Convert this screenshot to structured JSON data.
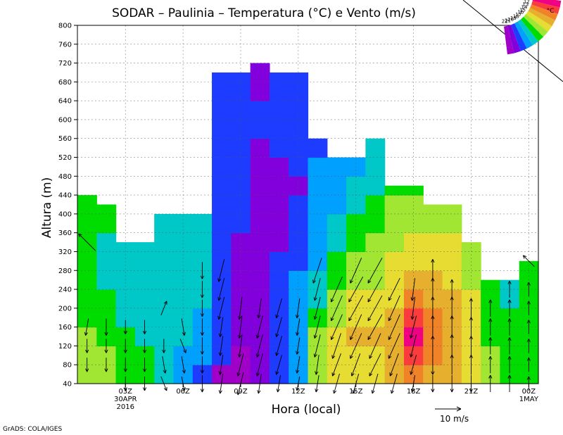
{
  "chart_data": {
    "type": "heatmap",
    "title": "SODAR – Paulinia – Temperatura (°C) e Vento (m/s)",
    "xlabel": "Hora (local)",
    "ylabel": "Altura (m)",
    "footer": "GrADS: COLA/IGES",
    "vector_key": {
      "label": "10 m/s",
      "speed": 10
    },
    "x_range_hours": [
      1,
      24
    ],
    "ylim": [
      40,
      800
    ],
    "y_ticks": [
      40,
      80,
      120,
      160,
      200,
      240,
      280,
      320,
      360,
      400,
      440,
      480,
      520,
      560,
      600,
      640,
      680,
      720,
      760,
      800
    ],
    "x_ticks": [
      {
        "hour": 3,
        "label": "03Z",
        "sub1": "30APR",
        "sub2": "2016"
      },
      {
        "hour": 6,
        "label": "06Z"
      },
      {
        "hour": 9,
        "label": "09Z"
      },
      {
        "hour": 12,
        "label": "12Z"
      },
      {
        "hour": 15,
        "label": "15Z"
      },
      {
        "hour": 18,
        "label": "18Z"
      },
      {
        "hour": 21,
        "label": "21Z"
      },
      {
        "hour": 24,
        "label": "00Z",
        "sub1": "1MAY"
      }
    ],
    "grid": true,
    "legend": {
      "unit": "°C",
      "placement": "top-right",
      "levels": [
        11,
        12,
        13,
        14,
        15,
        16,
        17,
        18,
        19,
        20,
        21,
        22
      ],
      "colors": [
        "#a000c8",
        "#8200dc",
        "#1e3cff",
        "#00a0ff",
        "#00c8c8",
        "#00dc00",
        "#a0e632",
        "#e6dc32",
        "#e6af2d",
        "#f08228",
        "#fa3c3c",
        "#f00082"
      ]
    },
    "columns": [
      {
        "hour": 1,
        "top": 440,
        "temps": [
          17,
          17,
          17,
          16,
          16,
          16,
          16,
          16,
          16,
          16,
          16
        ]
      },
      {
        "hour": 2,
        "top": 420,
        "temps": [
          17,
          17,
          16,
          16,
          16,
          15,
          15,
          15,
          16,
          16,
          16
        ]
      },
      {
        "hour": 3,
        "top": 340,
        "temps": [
          16,
          16,
          16,
          15,
          15,
          15,
          15,
          15
        ]
      },
      {
        "hour": 4,
        "top": 340,
        "temps": [
          16,
          16,
          15,
          15,
          15,
          15,
          15,
          15
        ]
      },
      {
        "hour": 5,
        "top": 400,
        "temps": [
          15,
          15,
          15,
          15,
          15,
          15,
          15,
          15,
          15,
          16
        ]
      },
      {
        "hour": 6,
        "top": 400,
        "temps": [
          14,
          14,
          15,
          15,
          15,
          15,
          15,
          15,
          15,
          16
        ]
      },
      {
        "hour": 7,
        "top": 400,
        "temps": [
          13,
          14,
          14,
          14,
          15,
          15,
          15,
          15,
          15,
          15
        ]
      },
      {
        "hour": 8,
        "top": 700,
        "temps": [
          11,
          13,
          13,
          13,
          13,
          13,
          13,
          13,
          13,
          13,
          13,
          13,
          13,
          13,
          13,
          13,
          13,
          13
        ]
      },
      {
        "hour": 9,
        "top": 700,
        "temps": [
          11,
          11,
          12,
          12,
          12,
          12,
          12,
          12,
          13,
          13,
          13,
          13,
          13,
          13,
          13,
          13,
          13,
          12
        ]
      },
      {
        "hour": 10,
        "top": 720,
        "temps": [
          12,
          12,
          12,
          12,
          12,
          12,
          12,
          12,
          12,
          12,
          12,
          12,
          12,
          13,
          13,
          12,
          12,
          12,
          12
        ]
      },
      {
        "hour": 11,
        "top": 700,
        "temps": [
          13,
          13,
          13,
          13,
          13,
          13,
          13,
          12,
          12,
          12,
          12,
          12,
          13,
          13,
          13,
          13,
          13,
          12
        ]
      },
      {
        "hour": 12,
        "top": 700,
        "temps": [
          14,
          14,
          14,
          14,
          14,
          14,
          13,
          13,
          13,
          13,
          12,
          13,
          13,
          13,
          13,
          13,
          13,
          12
        ]
      },
      {
        "hour": 13,
        "top": 560,
        "temps": [
          17,
          17,
          17,
          16,
          15,
          15,
          14,
          14,
          14,
          14,
          14,
          14,
          13,
          13
        ]
      },
      {
        "hour": 14,
        "top": 520,
        "temps": [
          18,
          18,
          18,
          17,
          17,
          16,
          16,
          15,
          15,
          14,
          14,
          14,
          14
        ]
      },
      {
        "hour": 15,
        "top": 520,
        "temps": [
          18,
          18,
          19,
          18,
          18,
          17,
          17,
          16,
          16,
          15,
          15,
          14,
          14
        ]
      },
      {
        "hour": 16,
        "top": 560,
        "temps": [
          18,
          18,
          19,
          18,
          18,
          17,
          17,
          17,
          16,
          16,
          15,
          15,
          15,
          14
        ]
      },
      {
        "hour": 17,
        "top": 460,
        "temps": [
          19,
          19,
          19,
          19,
          18,
          18,
          18,
          17,
          17,
          17,
          16,
          16
        ]
      },
      {
        "hour": 18,
        "top": 460,
        "temps": [
          20,
          21,
          22,
          21,
          20,
          19,
          18,
          18,
          17,
          17,
          16,
          16
        ]
      },
      {
        "hour": 19,
        "top": 420,
        "temps": [
          19,
          20,
          20,
          20,
          19,
          19,
          18,
          18,
          17,
          17,
          16
        ]
      },
      {
        "hour": 20,
        "top": 420,
        "temps": [
          19,
          19,
          19,
          19,
          19,
          18,
          18,
          18,
          17,
          17,
          16
        ]
      },
      {
        "hour": 21,
        "top": 340,
        "temps": [
          18,
          18,
          18,
          18,
          18,
          17,
          17,
          17
        ]
      },
      {
        "hour": 22,
        "top": 260,
        "temps": [
          17,
          17,
          16,
          16,
          16,
          16
        ]
      },
      {
        "hour": 23,
        "top": 260,
        "temps": [
          16,
          16,
          16,
          16,
          15,
          15
        ]
      },
      {
        "hour": 24,
        "top": 300,
        "temps": [
          16,
          16,
          16,
          16,
          16,
          16,
          16
        ]
      }
    ],
    "wind_vectors": [
      {
        "hour": 1,
        "profile": [
          [
            80,
            0,
            -5
          ],
          [
            120,
            0,
            -5
          ],
          [
            160,
            -1,
            -6
          ],
          [
            340,
            -6,
            6
          ]
        ]
      },
      {
        "hour": 2,
        "profile": [
          [
            80,
            0,
            -5
          ],
          [
            120,
            0,
            -5
          ],
          [
            160,
            0,
            -6
          ]
        ]
      },
      {
        "hour": 3,
        "profile": [
          [
            40,
            0,
            -5
          ],
          [
            80,
            0,
            -5
          ],
          [
            120,
            0,
            -5
          ],
          [
            160,
            0,
            -5
          ]
        ]
      },
      {
        "hour": 4,
        "profile": [
          [
            40,
            0,
            -5
          ],
          [
            80,
            0,
            -5
          ],
          [
            120,
            0,
            -5
          ],
          [
            160,
            0,
            -5
          ]
        ]
      },
      {
        "hour": 5,
        "profile": [
          [
            40,
            2,
            -5
          ],
          [
            80,
            1,
            -6
          ],
          [
            120,
            0,
            -5
          ],
          [
            200,
            2,
            5
          ]
        ]
      },
      {
        "hour": 6,
        "profile": [
          [
            40,
            1,
            -5
          ],
          [
            80,
            1,
            -6
          ],
          [
            120,
            2,
            -5
          ],
          [
            160,
            1,
            -6
          ]
        ]
      },
      {
        "hour": 7,
        "profile": [
          [
            40,
            0,
            -6
          ],
          [
            80,
            0,
            -6
          ],
          [
            120,
            0,
            -6
          ],
          [
            160,
            0,
            -6
          ],
          [
            200,
            0,
            -6
          ],
          [
            240,
            0,
            -6
          ],
          [
            280,
            0,
            -6
          ]
        ]
      },
      {
        "hour": 8,
        "profile": [
          [
            40,
            -1,
            -7
          ],
          [
            80,
            -1,
            -7
          ],
          [
            120,
            -1,
            -7
          ],
          [
            160,
            -1,
            -7
          ],
          [
            200,
            -2,
            -8
          ],
          [
            240,
            -2,
            -8
          ],
          [
            280,
            -2,
            -8
          ]
        ]
      },
      {
        "hour": 9,
        "profile": [
          [
            40,
            -2,
            -8
          ],
          [
            80,
            -2,
            -8
          ],
          [
            120,
            -1,
            -8
          ],
          [
            160,
            -1,
            -8
          ],
          [
            200,
            -1,
            -8
          ]
        ]
      },
      {
        "hour": 10,
        "profile": [
          [
            40,
            -1,
            -7
          ],
          [
            80,
            -2,
            -8
          ],
          [
            120,
            -2,
            -8
          ],
          [
            160,
            -2,
            -8
          ],
          [
            200,
            -1,
            -7
          ]
        ]
      },
      {
        "hour": 11,
        "profile": [
          [
            40,
            -1,
            -6
          ],
          [
            80,
            -2,
            -7
          ],
          [
            120,
            -2,
            -7
          ],
          [
            160,
            -2,
            -7
          ],
          [
            200,
            -2,
            -7
          ]
        ]
      },
      {
        "hour": 12,
        "profile": [
          [
            40,
            -1,
            -5
          ],
          [
            80,
            -1,
            -6
          ],
          [
            120,
            -1,
            -6
          ],
          [
            160,
            -1,
            -6
          ],
          [
            200,
            -1,
            -7
          ]
        ]
      },
      {
        "hour": 13,
        "profile": [
          [
            40,
            -1,
            -6
          ],
          [
            80,
            -1,
            -7
          ],
          [
            120,
            -2,
            -8
          ],
          [
            160,
            -2,
            -8
          ],
          [
            200,
            -2,
            -8
          ],
          [
            240,
            -2,
            -8
          ],
          [
            280,
            -3,
            -9
          ]
        ]
      },
      {
        "hour": 14,
        "profile": [
          [
            40,
            -2,
            -7
          ],
          [
            80,
            -3,
            -8
          ],
          [
            120,
            -3,
            -9
          ],
          [
            160,
            -4,
            -9
          ],
          [
            200,
            -4,
            -9
          ],
          [
            240,
            -4,
            -9
          ]
        ]
      },
      {
        "hour": 15,
        "profile": [
          [
            40,
            -2,
            -7
          ],
          [
            80,
            -3,
            -8
          ],
          [
            120,
            -4,
            -9
          ],
          [
            160,
            -4,
            -9
          ],
          [
            200,
            -5,
            -9
          ],
          [
            240,
            -5,
            -9
          ],
          [
            280,
            -4,
            -9
          ]
        ]
      },
      {
        "hour": 16,
        "profile": [
          [
            40,
            -2,
            -7
          ],
          [
            80,
            -4,
            -8
          ],
          [
            120,
            -4,
            -9
          ],
          [
            160,
            -5,
            -9
          ],
          [
            200,
            -5,
            -9
          ],
          [
            240,
            -5,
            -9
          ],
          [
            280,
            -5,
            -9
          ]
        ]
      },
      {
        "hour": 17,
        "profile": [
          [
            40,
            -2,
            -7
          ],
          [
            80,
            -3,
            -8
          ],
          [
            120,
            -4,
            -9
          ],
          [
            160,
            -4,
            -9
          ],
          [
            200,
            -4,
            -9
          ],
          [
            240,
            -4,
            -8
          ]
        ]
      },
      {
        "hour": 18,
        "profile": [
          [
            40,
            -1,
            -6
          ],
          [
            80,
            -2,
            -7
          ],
          [
            120,
            -2,
            -8
          ],
          [
            160,
            -2,
            -8
          ],
          [
            200,
            -1,
            -8
          ],
          [
            240,
            -1,
            -8
          ]
        ]
      },
      {
        "hour": 19,
        "profile": [
          [
            40,
            0,
            -6
          ],
          [
            80,
            0,
            -7
          ],
          [
            120,
            0,
            7
          ],
          [
            160,
            0,
            8
          ],
          [
            200,
            0,
            8
          ],
          [
            240,
            0,
            8
          ],
          [
            280,
            0,
            8
          ]
        ]
      },
      {
        "hour": 20,
        "profile": [
          [
            40,
            0,
            -6
          ],
          [
            80,
            0,
            7
          ],
          [
            120,
            0,
            8
          ],
          [
            160,
            0,
            8
          ],
          [
            200,
            0,
            8
          ],
          [
            240,
            0,
            7
          ]
        ]
      },
      {
        "hour": 21,
        "profile": [
          [
            40,
            0,
            -6
          ],
          [
            80,
            0,
            7
          ],
          [
            120,
            0,
            7
          ],
          [
            160,
            0,
            7
          ],
          [
            200,
            0,
            7
          ]
        ]
      },
      {
        "hour": 22,
        "profile": [
          [
            40,
            0,
            6
          ],
          [
            80,
            0,
            6
          ],
          [
            120,
            0,
            6
          ],
          [
            160,
            0,
            6
          ],
          [
            200,
            0,
            6
          ]
        ]
      },
      {
        "hour": 23,
        "profile": [
          [
            40,
            0,
            6
          ],
          [
            80,
            0,
            6
          ],
          [
            120,
            0,
            6
          ],
          [
            160,
            0,
            6
          ],
          [
            200,
            0,
            6
          ],
          [
            240,
            0,
            6
          ]
        ]
      },
      {
        "hour": 24,
        "profile": [
          [
            40,
            0,
            5
          ],
          [
            80,
            0,
            5
          ],
          [
            120,
            0,
            5
          ],
          [
            160,
            0,
            5
          ],
          [
            200,
            0,
            5
          ],
          [
            240,
            0,
            5
          ],
          [
            300,
            -4,
            4
          ]
        ]
      }
    ]
  }
}
